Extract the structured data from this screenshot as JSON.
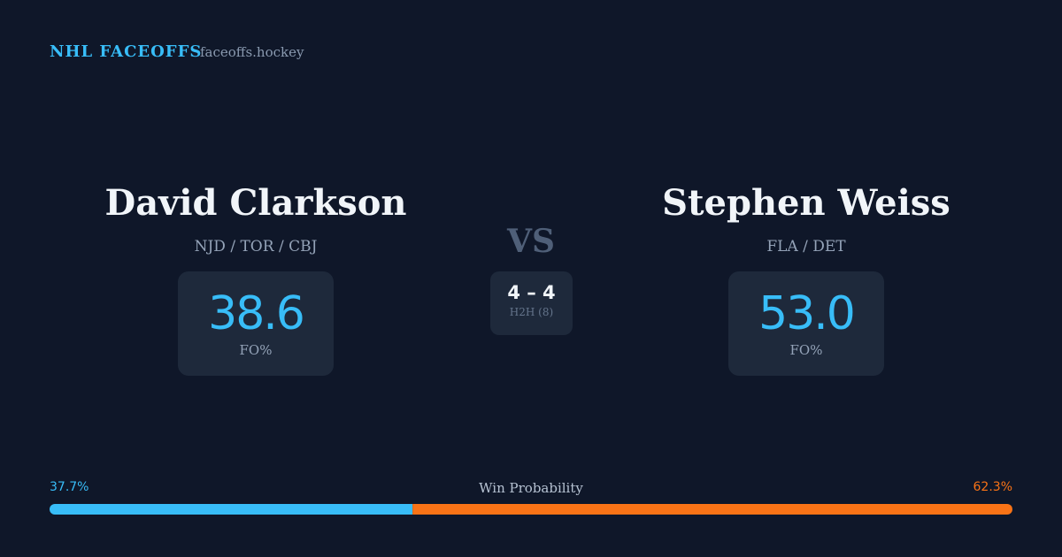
{
  "header": {
    "brand": "NHL FACEOFFS",
    "site": "faceoffs.hockey"
  },
  "players": [
    {
      "name": "David Clarkson",
      "teams": "NJD / TOR / CBJ",
      "fo_pct": "38.6",
      "fo_label": "FO%"
    },
    {
      "name": "Stephen Weiss",
      "teams": "FLA / DET",
      "fo_pct": "53.0",
      "fo_label": "FO%"
    }
  ],
  "vs": "VS",
  "h2h": {
    "record": "4 – 4",
    "label": "H2H (8)"
  },
  "win_probability": {
    "title": "Win Probability",
    "values": [
      37.7,
      62.3
    ],
    "value_labels": [
      "37.7%",
      "62.3%"
    ],
    "colors": [
      "#38bdf8",
      "#f97316"
    ]
  }
}
